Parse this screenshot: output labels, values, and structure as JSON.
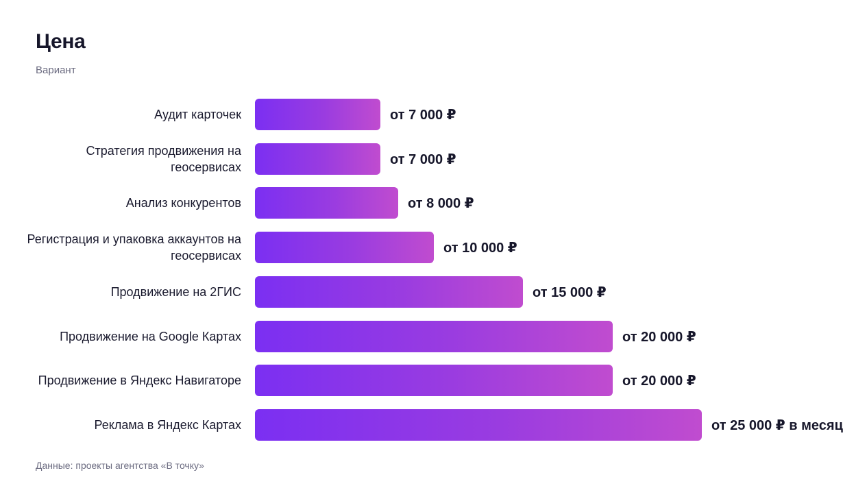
{
  "header": {
    "title": "Цена",
    "subtitle": "Вариант"
  },
  "footer": {
    "source": "Данные: проекты агентства «В точку»"
  },
  "colors": {
    "bar_start": "#7b2ff2",
    "bar_end": "#c04ccf",
    "text": "#16162a",
    "muted": "#6b6b80"
  },
  "chart_data": {
    "type": "bar",
    "orientation": "horizontal",
    "title": "Цена",
    "subtitle": "Вариант",
    "xlim": [
      0,
      25000
    ],
    "grid": false,
    "legend": "none",
    "categories": [
      "Аудит карточек",
      "Стратегия продвижения на геосервисах",
      "Анализ конкурентов",
      "Регистрация и упаковка аккаунтов на геосервисах",
      "Продвижение на 2ГИС",
      "Продвижение на Google Картах",
      "Продвижение в Яндекс Навигаторе",
      "Реклама в Яндекс Картах"
    ],
    "values": [
      7000,
      7000,
      8000,
      10000,
      15000,
      20000,
      20000,
      25000
    ],
    "value_labels": [
      "от 7 000 ₽",
      "от 7 000 ₽",
      "от 8 000 ₽",
      "от 10 000 ₽",
      "от 15 000 ₽",
      "от 20 000 ₽",
      "от 20 000 ₽",
      "от 25 000 ₽ в месяц"
    ]
  }
}
